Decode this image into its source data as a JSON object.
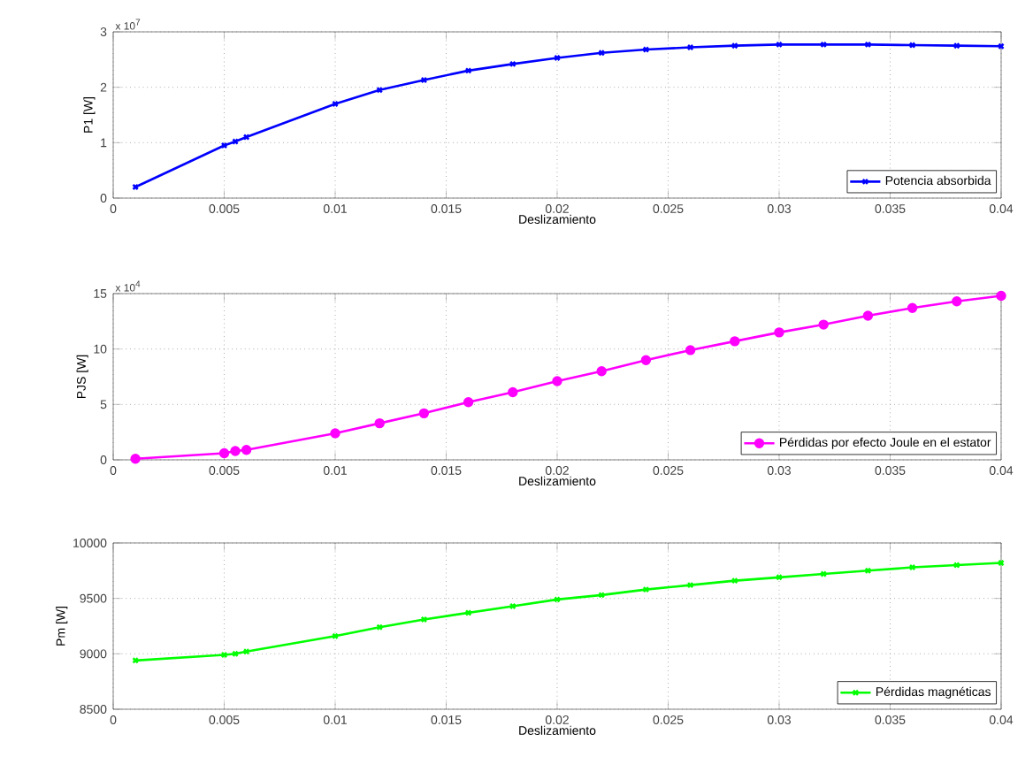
{
  "chart_data": [
    {
      "type": "line",
      "xlabel": "Deslizamiento",
      "ylabel": "P1 [W]",
      "annotations": [
        "x 10$^{7}$"
      ],
      "x": [
        0.001,
        0.005,
        0.0055,
        0.006,
        0.01,
        0.012,
        0.014,
        0.016,
        0.018,
        0.02,
        0.022,
        0.024,
        0.026,
        0.028,
        0.03,
        0.032,
        0.034,
        0.036,
        0.038,
        0.04
      ],
      "series": [
        {
          "name": "Potencia absorbida",
          "color": "#0000ff",
          "values": [
            0.2,
            0.95,
            1.02,
            1.1,
            1.7,
            1.95,
            2.13,
            2.3,
            2.42,
            2.53,
            2.62,
            2.68,
            2.72,
            2.75,
            2.77,
            2.77,
            2.77,
            2.76,
            2.75,
            2.74
          ]
        }
      ],
      "xlim": [
        0,
        0.04
      ],
      "xticks": [
        0,
        0.005,
        0.01,
        0.015,
        0.02,
        0.025,
        0.03,
        0.035,
        0.04
      ],
      "ylim": [
        0,
        3
      ],
      "yticks": [
        0,
        1,
        2,
        3
      ],
      "grid": true,
      "legend": "bottom right",
      "marker": "cross",
      "line_style": "solid"
    },
    {
      "type": "line",
      "xlabel": "Deslizamiento",
      "ylabel": "PJS [W]",
      "annotations": [
        "x 10$^{4}$"
      ],
      "x": [
        0.001,
        0.005,
        0.0055,
        0.006,
        0.01,
        0.012,
        0.014,
        0.016,
        0.018,
        0.02,
        0.022,
        0.024,
        0.026,
        0.028,
        0.03,
        0.032,
        0.034,
        0.036,
        0.038,
        0.04
      ],
      "series": [
        {
          "name": "Pérdidas por efecto Joule en el estator",
          "color": "#ff00ff",
          "values": [
            0.1,
            0.6,
            0.8,
            0.9,
            2.4,
            3.3,
            4.2,
            5.2,
            6.1,
            7.1,
            8.0,
            9.0,
            9.9,
            10.7,
            11.5,
            12.2,
            13.0,
            13.7,
            14.3,
            14.8
          ]
        }
      ],
      "xlim": [
        0,
        0.04
      ],
      "xticks": [
        0,
        0.005,
        0.01,
        0.015,
        0.02,
        0.025,
        0.03,
        0.035,
        0.04
      ],
      "ylim": [
        0,
        15
      ],
      "yticks": [
        0,
        5,
        10,
        15
      ],
      "grid": true,
      "legend": "bottom right",
      "marker": "circle",
      "line_style": "solid"
    },
    {
      "type": "line",
      "xlabel": "Deslizamiento",
      "ylabel": "Pm [W]",
      "x": [
        0.001,
        0.005,
        0.0055,
        0.006,
        0.01,
        0.012,
        0.014,
        0.016,
        0.018,
        0.02,
        0.022,
        0.024,
        0.026,
        0.028,
        0.03,
        0.032,
        0.034,
        0.036,
        0.038,
        0.04
      ],
      "series": [
        {
          "name": "Pérdidas magnéticas",
          "color": "#00ff00",
          "values": [
            8940,
            8990,
            9000,
            9020,
            9160,
            9240,
            9310,
            9370,
            9430,
            9490,
            9530,
            9580,
            9620,
            9660,
            9690,
            9720,
            9750,
            9780,
            9800,
            9820
          ]
        }
      ],
      "xlim": [
        0,
        0.04
      ],
      "xticks": [
        0,
        0.005,
        0.01,
        0.015,
        0.02,
        0.025,
        0.03,
        0.035,
        0.04
      ],
      "ylim": [
        8500,
        10000
      ],
      "yticks": [
        8500,
        9000,
        9500,
        10000
      ],
      "grid": true,
      "legend": "bottom right",
      "marker": "cross",
      "line_style": "solid"
    }
  ]
}
